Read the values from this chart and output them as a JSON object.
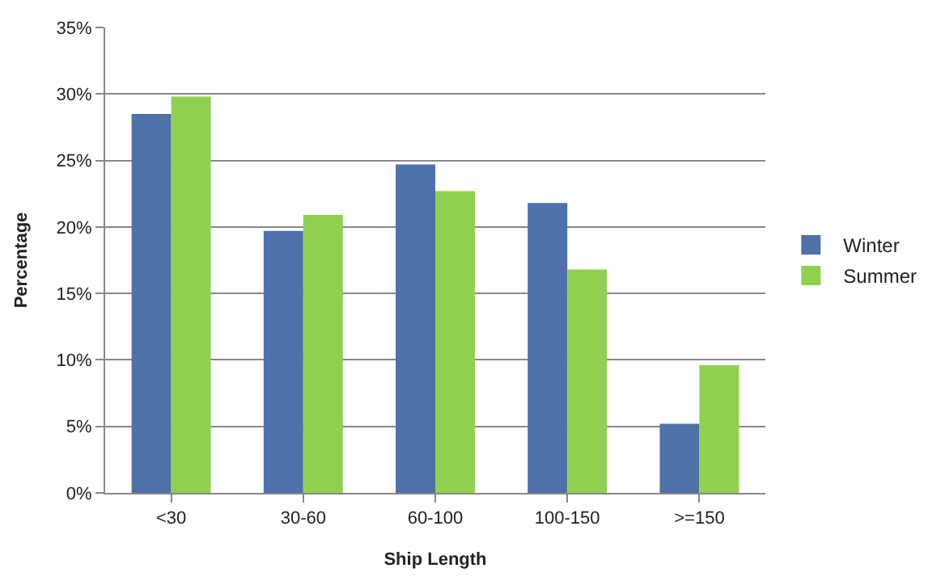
{
  "chart_data": {
    "type": "bar",
    "xlabel": "Ship Length",
    "ylabel": "Percentage",
    "categories": [
      "<30",
      "30-60",
      "60-100",
      "100-150",
      ">=150"
    ],
    "series": [
      {
        "name": "Winter",
        "color": "#4f71a9",
        "values": [
          28.5,
          19.7,
          24.7,
          21.8,
          5.2
        ]
      },
      {
        "name": "Summer",
        "color": "#8fd14f",
        "values": [
          29.8,
          20.9,
          22.7,
          16.8,
          9.6
        ]
      }
    ],
    "ylim": [
      0,
      35
    ],
    "yticks": [
      {
        "value": 0,
        "label": "0%"
      },
      {
        "value": 5,
        "label": "5%"
      },
      {
        "value": 10,
        "label": "10%"
      },
      {
        "value": 15,
        "label": "15%"
      },
      {
        "value": 20,
        "label": "20%"
      },
      {
        "value": 25,
        "label": "25%"
      },
      {
        "value": 30,
        "label": "30%"
      },
      {
        "value": 35,
        "label": "35%"
      }
    ],
    "grid": "y",
    "legend": "right"
  }
}
